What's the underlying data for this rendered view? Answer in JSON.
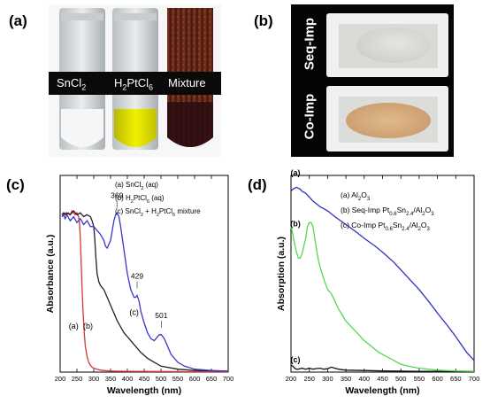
{
  "panels": {
    "a": {
      "label": "(a)",
      "tubes": [
        {
          "name": "SnCl",
          "sub": "2",
          "tail": ""
        },
        {
          "name": "H",
          "sub": "2",
          "tail": "PtCl",
          "sub2": "6"
        },
        {
          "name": "Mixture",
          "sub": "",
          "tail": ""
        }
      ]
    },
    "b": {
      "label": "(b)",
      "boats": [
        "Seq-Imp",
        "Co-Imp"
      ]
    },
    "c": {
      "label": "(c)"
    },
    "d": {
      "label": "(d)"
    }
  },
  "chart_data": [
    {
      "type": "line",
      "panel": "c",
      "xlabel": "Wavelength (nm)",
      "ylabel": "Absorbance (a.u.)",
      "xlim": [
        200,
        700
      ],
      "xticks": [
        200,
        250,
        300,
        350,
        400,
        450,
        500,
        550,
        600,
        650,
        700
      ],
      "ylim": [
        0,
        1
      ],
      "legend_placement": "top-right",
      "legend": [
        {
          "prefix": "(a) SnCl",
          "sub": "2",
          "suffix": " (aq)"
        },
        {
          "prefix": "(b) H",
          "sub": "2",
          "mid": "PtCl",
          "sub2": "6",
          "suffix": " (aq)"
        },
        {
          "prefix": "(c) SnCl",
          "sub": "2",
          "mid": " + H",
          "sub2": "2",
          "mid2": "PtCl",
          "sub3": "6",
          "suffix": " mixture"
        }
      ],
      "curve_labels": [
        "(a)",
        "(b)",
        "(c)"
      ],
      "peak_labels": [
        "369",
        "429",
        "501"
      ],
      "series": [
        {
          "color": "#d9372f",
          "x": [
            205,
            210,
            215,
            220,
            225,
            230,
            235,
            240,
            245,
            250,
            255,
            258,
            260,
            262,
            265,
            268,
            270,
            272,
            275,
            280,
            285,
            290,
            295,
            300,
            310,
            320,
            330,
            350,
            400,
            500,
            600,
            700
          ],
          "y": [
            0.79,
            0.8,
            0.81,
            0.8,
            0.81,
            0.8,
            0.82,
            0.81,
            0.8,
            0.81,
            0.79,
            0.75,
            0.68,
            0.58,
            0.44,
            0.32,
            0.25,
            0.19,
            0.13,
            0.08,
            0.05,
            0.035,
            0.025,
            0.02,
            0.015,
            0.01,
            0.008,
            0.005,
            0.004,
            0.003,
            0.002,
            0.002
          ]
        },
        {
          "color": "#222222",
          "x": [
            205,
            210,
            215,
            220,
            230,
            240,
            250,
            260,
            270,
            280,
            290,
            295,
            300,
            303,
            306,
            310,
            315,
            320,
            330,
            340,
            350,
            360,
            370,
            380,
            390,
            400,
            420,
            440,
            460,
            480,
            500,
            550,
            600,
            700
          ],
          "y": [
            0.8,
            0.81,
            0.8,
            0.81,
            0.8,
            0.82,
            0.8,
            0.81,
            0.79,
            0.8,
            0.79,
            0.77,
            0.74,
            0.68,
            0.59,
            0.5,
            0.46,
            0.44,
            0.42,
            0.38,
            0.34,
            0.3,
            0.26,
            0.23,
            0.2,
            0.18,
            0.14,
            0.1,
            0.07,
            0.05,
            0.03,
            0.015,
            0.008,
            0.005
          ]
        },
        {
          "color": "#3a36c8",
          "x": [
            205,
            210,
            215,
            220,
            230,
            240,
            250,
            260,
            270,
            280,
            290,
            300,
            310,
            320,
            330,
            335,
            340,
            350,
            360,
            365,
            369,
            375,
            380,
            390,
            400,
            410,
            420,
            425,
            429,
            435,
            440,
            450,
            460,
            470,
            480,
            490,
            495,
            501,
            510,
            520,
            530,
            550,
            570,
            600,
            650,
            700
          ],
          "y": [
            0.79,
            0.8,
            0.78,
            0.8,
            0.77,
            0.79,
            0.76,
            0.78,
            0.75,
            0.77,
            0.74,
            0.74,
            0.72,
            0.7,
            0.67,
            0.64,
            0.63,
            0.67,
            0.77,
            0.8,
            0.81,
            0.79,
            0.74,
            0.62,
            0.5,
            0.42,
            0.38,
            0.38,
            0.39,
            0.36,
            0.31,
            0.25,
            0.2,
            0.17,
            0.16,
            0.18,
            0.19,
            0.19,
            0.17,
            0.13,
            0.09,
            0.05,
            0.03,
            0.015,
            0.008,
            0.005
          ]
        }
      ]
    },
    {
      "type": "line",
      "panel": "d",
      "xlabel": "Wavelength (nm)",
      "ylabel": "Absorption (a.u.)",
      "xlim": [
        200,
        700
      ],
      "xticks": [
        200,
        250,
        300,
        350,
        400,
        450,
        500,
        550,
        600,
        650,
        700
      ],
      "ylim": [
        0,
        1
      ],
      "legend_placement": "top-right",
      "legend": [
        {
          "prefix": "(a) Al",
          "sub": "2",
          "mid": "O",
          "sub2": "3",
          "suffix": ""
        },
        {
          "prefix": "(b) Seq-Imp Pt",
          "sub": "0.6",
          "mid": "Sn",
          "sub2": "2.4",
          "mid2": "/Al",
          "sub3": "2",
          "mid3": "O",
          "sub4": "3"
        },
        {
          "prefix": "(c) Co-Imp Pt",
          "sub": "0.6",
          "mid": "Sn",
          "sub2": "2.4",
          "mid2": "/Al",
          "sub3": "2",
          "mid3": "O",
          "sub4": "3"
        }
      ],
      "curve_labels": [
        "(a)",
        "(b)",
        "(c)"
      ],
      "series": [
        {
          "color": "#111111",
          "x": [
            200,
            205,
            210,
            215,
            220,
            230,
            240,
            250,
            260,
            270,
            280,
            290,
            300,
            310,
            320,
            330,
            340,
            350,
            400,
            450,
            500,
            550,
            600,
            650,
            700
          ],
          "y": [
            0.035,
            0.03,
            0.02,
            0.015,
            0.015,
            0.02,
            0.015,
            0.02,
            0.015,
            0.018,
            0.02,
            0.015,
            0.017,
            0.025,
            0.02,
            0.015,
            0.012,
            0.01,
            0.008,
            0.006,
            0.005,
            0.004,
            0.004,
            0.003,
            0.003
          ]
        },
        {
          "color": "#4fd94f",
          "x": [
            200,
            205,
            210,
            215,
            220,
            225,
            230,
            235,
            240,
            245,
            250,
            255,
            260,
            265,
            270,
            275,
            280,
            290,
            300,
            310,
            320,
            330,
            340,
            350,
            360,
            380,
            400,
            420,
            440,
            460,
            480,
            500,
            520,
            550,
            600,
            650,
            700
          ],
          "y": [
            0.74,
            0.7,
            0.65,
            0.61,
            0.58,
            0.58,
            0.6,
            0.64,
            0.68,
            0.74,
            0.76,
            0.76,
            0.74,
            0.68,
            0.62,
            0.57,
            0.53,
            0.47,
            0.42,
            0.4,
            0.36,
            0.32,
            0.29,
            0.26,
            0.24,
            0.2,
            0.16,
            0.13,
            0.1,
            0.08,
            0.06,
            0.04,
            0.03,
            0.02,
            0.01,
            0.006,
            0.004
          ]
        },
        {
          "color": "#2f2fc0",
          "x": [
            200,
            205,
            210,
            215,
            220,
            225,
            230,
            240,
            250,
            260,
            280,
            300,
            320,
            350,
            380,
            400,
            430,
            450,
            480,
            500,
            530,
            550,
            580,
            600,
            630,
            650,
            680,
            700
          ],
          "y": [
            0.92,
            0.93,
            0.935,
            0.94,
            0.935,
            0.93,
            0.92,
            0.91,
            0.89,
            0.87,
            0.84,
            0.82,
            0.79,
            0.75,
            0.71,
            0.68,
            0.64,
            0.61,
            0.56,
            0.52,
            0.46,
            0.42,
            0.35,
            0.3,
            0.23,
            0.18,
            0.1,
            0.06
          ]
        }
      ]
    }
  ]
}
